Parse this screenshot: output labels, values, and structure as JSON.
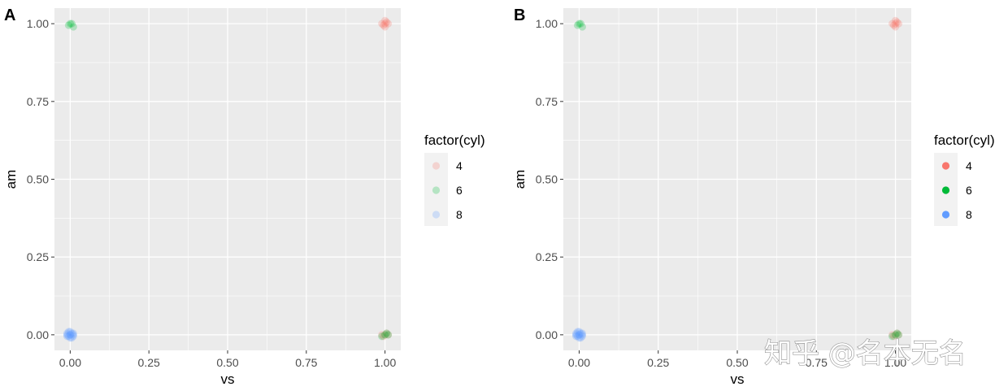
{
  "chart_data": [
    {
      "panel": "A",
      "type": "scatter",
      "xlabel": "vs",
      "ylabel": "am",
      "xlim": [
        -0.05,
        1.05
      ],
      "ylim": [
        -0.05,
        1.05
      ],
      "x_ticks": [
        "0.00",
        "0.25",
        "0.50",
        "0.75",
        "1.00"
      ],
      "y_ticks": [
        "0.00",
        "0.25",
        "0.50",
        "0.75",
        "1.00"
      ],
      "grid": true,
      "legend": {
        "title": "factor(cyl)",
        "position": "right",
        "labels": [
          "4",
          "6",
          "8"
        ]
      },
      "point_alpha": 0.25,
      "series": [
        {
          "name": "4",
          "color": "#F8766D",
          "points": [
            [
              1.0,
              1.0
            ],
            [
              0.99,
              1.0
            ],
            [
              1.01,
              1.0
            ],
            [
              1.0,
              0.99
            ],
            [
              1.0,
              1.01
            ],
            [
              0.995,
              0.995
            ],
            [
              1.005,
              1.005
            ],
            [
              1.0,
              0.0
            ],
            [
              1.005,
              0.005
            ],
            [
              0.995,
              -0.005
            ],
            [
              1.01,
              0.0
            ],
            [
              0.99,
              0.0
            ]
          ]
        },
        {
          "name": "6",
          "color": "#00BA38",
          "points": [
            [
              0.0,
              1.0
            ],
            [
              -0.005,
              0.995
            ],
            [
              0.005,
              1.0
            ],
            [
              0.01,
              0.99
            ],
            [
              1.0,
              0.0
            ],
            [
              1.005,
              0.005
            ],
            [
              1.01,
              0.0
            ],
            [
              0.99,
              -0.005
            ]
          ]
        },
        {
          "name": "8",
          "color": "#619CFF",
          "points": [
            [
              0.0,
              0.0
            ],
            [
              -0.01,
              0.0
            ],
            [
              0.01,
              0.0
            ],
            [
              0.0,
              0.01
            ],
            [
              0.0,
              -0.01
            ],
            [
              0.005,
              0.005
            ],
            [
              -0.005,
              -0.005
            ],
            [
              0.01,
              0.005
            ],
            [
              -0.01,
              -0.005
            ],
            [
              0.005,
              -0.01
            ],
            [
              -0.005,
              0.01
            ],
            [
              0.0,
              0.0
            ],
            [
              0.01,
              -0.005
            ],
            [
              -0.01,
              0.005
            ]
          ]
        }
      ]
    },
    {
      "panel": "B",
      "type": "scatter",
      "xlabel": "vs",
      "ylabel": "am",
      "xlim": [
        -0.05,
        1.05
      ],
      "ylim": [
        -0.05,
        1.05
      ],
      "x_ticks": [
        "0.00",
        "0.25",
        "0.50",
        "0.75",
        "1.00"
      ],
      "y_ticks": [
        "0.00",
        "0.25",
        "0.50",
        "0.75",
        "1.00"
      ],
      "grid": true,
      "legend": {
        "title": "factor(cyl)",
        "position": "right",
        "labels": [
          "4",
          "6",
          "8"
        ]
      },
      "point_alpha": 0.25,
      "series": [
        {
          "name": "4",
          "color": "#F8766D",
          "points": [
            [
              1.0,
              1.0
            ],
            [
              0.99,
              1.0
            ],
            [
              1.01,
              1.0
            ],
            [
              1.0,
              0.99
            ],
            [
              1.0,
              1.01
            ],
            [
              0.995,
              0.995
            ],
            [
              1.005,
              1.005
            ],
            [
              1.0,
              0.0
            ],
            [
              1.005,
              0.005
            ],
            [
              0.995,
              -0.005
            ],
            [
              1.01,
              0.0
            ],
            [
              0.99,
              0.0
            ]
          ]
        },
        {
          "name": "6",
          "color": "#00BA38",
          "points": [
            [
              0.0,
              1.0
            ],
            [
              -0.005,
              0.995
            ],
            [
              0.005,
              1.0
            ],
            [
              0.01,
              0.99
            ],
            [
              1.0,
              0.0
            ],
            [
              1.005,
              0.005
            ],
            [
              1.01,
              0.0
            ],
            [
              0.99,
              -0.005
            ]
          ]
        },
        {
          "name": "8",
          "color": "#619CFF",
          "points": [
            [
              0.0,
              0.0
            ],
            [
              -0.01,
              0.0
            ],
            [
              0.01,
              0.0
            ],
            [
              0.0,
              0.01
            ],
            [
              0.0,
              -0.01
            ],
            [
              0.005,
              0.005
            ],
            [
              -0.005,
              -0.005
            ],
            [
              0.01,
              0.005
            ],
            [
              -0.01,
              -0.005
            ],
            [
              0.005,
              -0.01
            ],
            [
              -0.005,
              0.01
            ],
            [
              0.0,
              0.0
            ],
            [
              0.01,
              -0.005
            ],
            [
              -0.01,
              0.005
            ]
          ]
        }
      ]
    }
  ],
  "legend_key_alpha": {
    "A": 0.25,
    "B": 1.0
  },
  "theme": {
    "panel_bg": "#EBEBEB",
    "grid_color": "#ffffff",
    "tick_color": "#333333"
  },
  "watermark": "知乎 @名本无名"
}
